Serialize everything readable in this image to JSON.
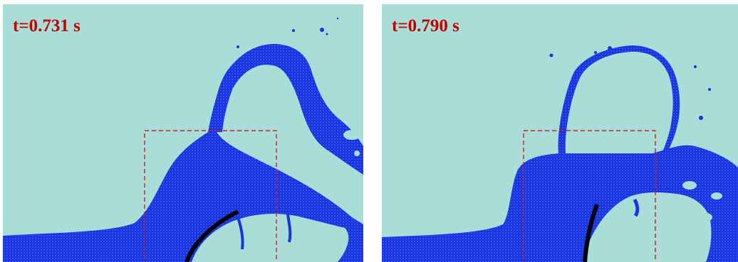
{
  "panels": [
    {
      "time_label": "t=0.731 s"
    },
    {
      "time_label": "t=0.790 s"
    }
  ],
  "colors": {
    "background_fluid": "#a9ddd8",
    "dense_fluid": "#1a35e0",
    "label_text": "#c00000",
    "dashed_box": "#d02020",
    "structure": "#000000"
  }
}
